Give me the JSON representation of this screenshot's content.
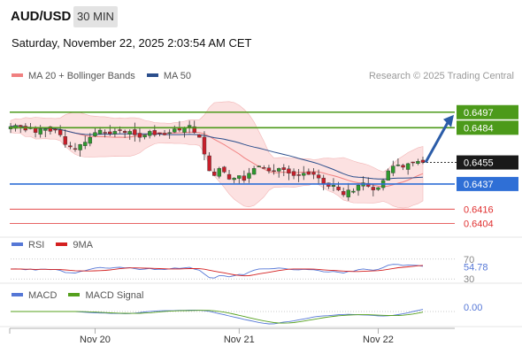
{
  "header": {
    "symbol": "AUD/USD",
    "timeframe": "30 MIN",
    "datetime": "Saturday, November 22, 2025 2:03:54 AM CET"
  },
  "credit": "Research © 2025 Trading Central",
  "legend_price": [
    {
      "label": "MA 20 + Bollinger Bands",
      "color": "#f08080"
    },
    {
      "label": "MA 50",
      "color": "#2b4e8c"
    }
  ],
  "legend_rsi": [
    {
      "label": "RSI",
      "color": "#5577d6"
    },
    {
      "label": "9MA",
      "color": "#d42020"
    }
  ],
  "legend_macd": [
    {
      "label": "MACD",
      "color": "#5577d6"
    },
    {
      "label": "MACD Signal",
      "color": "#55a01e"
    }
  ],
  "chart_data": [
    {
      "type": "candlestick",
      "panel": "price",
      "ylim": [
        0.6397,
        0.6502
      ],
      "current_price": {
        "label": "0.6455",
        "value": 0.6455
      },
      "resistance_levels": [
        {
          "label": "0.6497",
          "value": 0.6497,
          "color": "#4c9a1a"
        },
        {
          "label": "0.6484",
          "value": 0.6484,
          "color": "#4c9a1a"
        }
      ],
      "pivot": {
        "label": "0.6437",
        "value": 0.6437,
        "color": "#2f6fd6"
      },
      "support_levels": [
        {
          "label": "0.6416",
          "value": 0.6416,
          "color": "#e03030"
        },
        {
          "label": "0.6404",
          "value": 0.6404,
          "color": "#e03030"
        }
      ],
      "close_path": [
        0.6485,
        0.6486,
        0.6485,
        0.6482,
        0.6484,
        0.648,
        0.6483,
        0.6483,
        0.6481,
        0.6482,
        0.6478,
        0.647,
        0.6468,
        0.6466,
        0.647,
        0.6472,
        0.6476,
        0.648,
        0.6482,
        0.648,
        0.6479,
        0.6481,
        0.6482,
        0.648,
        0.6481,
        0.6478,
        0.6476,
        0.6478,
        0.6481,
        0.6478,
        0.6479,
        0.6478,
        0.648,
        0.6483,
        0.6482,
        0.6484,
        0.6486,
        0.648,
        0.6476,
        0.6462,
        0.6448,
        0.6444,
        0.645,
        0.6447,
        0.6441,
        0.6442,
        0.6444,
        0.644,
        0.6446,
        0.645,
        0.6452,
        0.645,
        0.6448,
        0.6448,
        0.645,
        0.6449,
        0.6446,
        0.6444,
        0.6444,
        0.6446,
        0.6445,
        0.6445,
        0.6442,
        0.6437,
        0.6435,
        0.6436,
        0.6432,
        0.6428,
        0.6432,
        0.6431,
        0.6436,
        0.6438,
        0.6435,
        0.6432,
        0.6434,
        0.644,
        0.6448,
        0.6452,
        0.6453,
        0.6451,
        0.6454,
        0.6455,
        0.6456,
        0.6455
      ]
    },
    {
      "type": "line",
      "panel": "RSI",
      "ylim": [
        25,
        75
      ],
      "levels": [
        {
          "label": "70",
          "value": 70
        },
        {
          "label": "30",
          "value": 30
        }
      ],
      "last_value": {
        "label": "54.78",
        "value": 54.78
      }
    },
    {
      "type": "line",
      "panel": "MACD",
      "last_value": {
        "label": "0.00",
        "value": 0.0
      }
    }
  ],
  "x_axis": {
    "ticks": [
      {
        "label": "Nov 20",
        "bar": 17
      },
      {
        "label": "Nov 21",
        "bar": 46
      },
      {
        "label": "Nov 22",
        "bar": 74
      }
    ]
  }
}
